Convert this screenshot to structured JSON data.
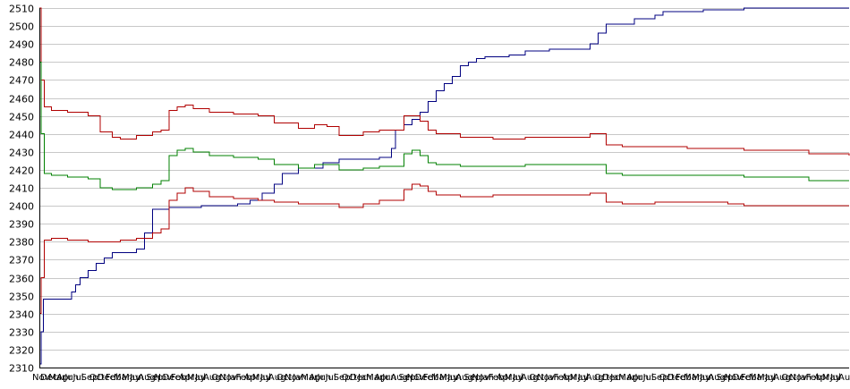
{
  "chart_data": {
    "type": "line",
    "title": "",
    "xlabel": "",
    "ylabel": "",
    "ylim": [
      2310,
      2510
    ],
    "yticks": [
      2310,
      2320,
      2330,
      2340,
      2350,
      2360,
      2370,
      2380,
      2390,
      2400,
      2410,
      2420,
      2430,
      2440,
      2450,
      2460,
      2470,
      2480,
      2490,
      2500,
      2510
    ],
    "xlim": [
      0,
      1000
    ],
    "grid": "horizontal",
    "legend": "none",
    "series": [
      {
        "color": "#000080",
        "x": [
          0,
          2,
          5,
          35,
          40,
          45,
          50,
          60,
          70,
          80,
          90,
          110,
          120,
          130,
          140,
          150,
          160,
          190,
          200,
          225,
          245,
          260,
          275,
          290,
          300,
          320,
          340,
          350,
          355,
          370,
          380,
          420,
          435,
          440,
          450,
          460,
          470,
          480,
          490,
          500,
          510,
          520,
          530,
          540,
          550,
          560,
          580,
          600,
          630,
          660,
          680,
          690,
          700,
          720,
          735,
          760,
          770,
          800,
          820,
          850,
          870,
          1000
        ],
        "values": [
          2312,
          2330,
          2348,
          2348,
          2352,
          2356,
          2360,
          2364,
          2368,
          2371,
          2374,
          2374,
          2376,
          2385,
          2398,
          2398,
          2399,
          2399,
          2400,
          2400,
          2401,
          2403,
          2407,
          2412,
          2418,
          2421,
          2421,
          2424,
          2424,
          2426,
          2426,
          2427,
          2432,
          2442,
          2445,
          2448,
          2452,
          2458,
          2464,
          2468,
          2472,
          2478,
          2480,
          2482,
          2483,
          2483,
          2484,
          2486,
          2487,
          2487,
          2490,
          2496,
          2501,
          2501,
          2504,
          2506,
          2508,
          2508,
          2509,
          2509,
          2510,
          2510
        ]
      },
      {
        "color": "#b00000",
        "x": [
          0,
          2,
          6,
          15,
          35,
          60,
          75,
          90,
          100,
          120,
          140,
          150,
          160,
          170,
          180,
          190,
          210,
          240,
          270,
          290,
          320,
          340,
          355,
          370,
          380,
          400,
          420,
          450,
          460,
          470,
          480,
          490,
          500,
          520,
          560,
          600,
          680,
          700,
          720,
          760,
          800,
          850,
          870,
          900,
          930,
          950,
          1000
        ],
        "values": [
          2510,
          2470,
          2455,
          2453,
          2452,
          2450,
          2441,
          2438,
          2437,
          2439,
          2441,
          2442,
          2453,
          2455,
          2456,
          2454,
          2452,
          2451,
          2450,
          2446,
          2443,
          2445,
          2444,
          2439,
          2439,
          2441,
          2442,
          2450,
          2450,
          2447,
          2442,
          2440,
          2440,
          2438,
          2437,
          2438,
          2440,
          2434,
          2433,
          2433,
          2432,
          2432,
          2431,
          2431,
          2431,
          2429,
          2428
        ]
      },
      {
        "color": "#008000",
        "x": [
          0,
          2,
          6,
          15,
          35,
          60,
          75,
          90,
          100,
          120,
          140,
          150,
          160,
          170,
          180,
          190,
          210,
          240,
          270,
          290,
          320,
          340,
          355,
          370,
          380,
          400,
          420,
          450,
          460,
          470,
          480,
          490,
          500,
          520,
          560,
          600,
          680,
          700,
          720,
          760,
          800,
          850,
          870,
          900,
          930,
          950,
          1000
        ],
        "values": [
          2480,
          2440,
          2418,
          2417,
          2416,
          2415,
          2410,
          2409,
          2409,
          2410,
          2412,
          2414,
          2428,
          2431,
          2432,
          2430,
          2428,
          2427,
          2426,
          2423,
          2421,
          2423,
          2423,
          2420,
          2420,
          2421,
          2422,
          2429,
          2431,
          2428,
          2424,
          2423,
          2423,
          2422,
          2422,
          2423,
          2423,
          2418,
          2417,
          2417,
          2417,
          2417,
          2416,
          2416,
          2416,
          2414,
          2414
        ]
      },
      {
        "color": "#b00000",
        "x": [
          0,
          2,
          6,
          15,
          35,
          60,
          75,
          90,
          100,
          120,
          140,
          150,
          160,
          170,
          180,
          190,
          210,
          240,
          270,
          290,
          320,
          340,
          355,
          370,
          380,
          400,
          420,
          450,
          460,
          470,
          480,
          490,
          500,
          520,
          560,
          600,
          680,
          700,
          720,
          760,
          800,
          850,
          870,
          900,
          930,
          950,
          1000
        ],
        "values": [
          2340,
          2360,
          2381,
          2382,
          2381,
          2380,
          2380,
          2380,
          2381,
          2382,
          2385,
          2387,
          2403,
          2407,
          2410,
          2408,
          2405,
          2404,
          2403,
          2402,
          2401,
          2401,
          2401,
          2399,
          2399,
          2401,
          2403,
          2409,
          2412,
          2411,
          2408,
          2406,
          2406,
          2405,
          2406,
          2406,
          2407,
          2402,
          2401,
          2402,
          2402,
          2401,
          2400,
          2400,
          2400,
          2400,
          2400
        ]
      }
    ],
    "xtick_labels": [
      "Nov",
      "Dec",
      "Mar",
      "Apr",
      "Jun",
      "Jul",
      "Sep",
      "Oct",
      "Dec",
      "Feb",
      "Mar",
      "May",
      "Jun",
      "Aug",
      "Sep",
      "Nov",
      "Dec",
      "Feb",
      "Apr",
      "May",
      "Jul",
      "Aug",
      "Oct",
      "Nov",
      "Jan",
      "Feb",
      "Apr",
      "May",
      "Jul",
      "Aug",
      "Oct",
      "Nov",
      "Jan",
      "Mar",
      "Apr",
      "Jun",
      "Jul",
      "Sep",
      "Oct",
      "Dec",
      "Jan",
      "Mar",
      "Apr",
      "Jun",
      "Aug",
      "Sep",
      "Nov",
      "Dec",
      "Feb",
      "Mar",
      "May",
      "Jun",
      "Aug",
      "Sep",
      "Nov",
      "Jan",
      "Feb",
      "Apr",
      "May",
      "Jul",
      "Aug",
      "Oct",
      "Nov",
      "Jan",
      "Feb",
      "Apr",
      "May",
      "Jul",
      "Aug",
      "Oct",
      "Dec",
      "Jan",
      "Mar",
      "Apr",
      "Jun",
      "Jul",
      "Sep",
      "Oct",
      "Dec",
      "Feb",
      "Mar",
      "May",
      "Jun",
      "Aug",
      "Sep",
      "Nov",
      "Dec",
      "Feb",
      "Mar",
      "May",
      "Jul",
      "Aug",
      "Oct",
      "Nov",
      "Jan",
      "Feb",
      "Apr",
      "May",
      "Jul",
      "Aug"
    ]
  }
}
